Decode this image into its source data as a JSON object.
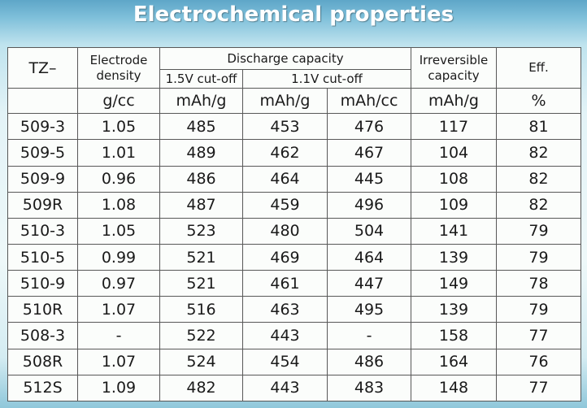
{
  "slide": {
    "title": "Electrochemical properties"
  },
  "table": {
    "header": {
      "tz": "TZ–",
      "electrode_density": [
        "Electrode",
        "density"
      ],
      "discharge_capacity": "Discharge capacity",
      "cutoff_15": "1.5V cut-off",
      "cutoff_11": "1.1V cut-off",
      "irreversible_capacity": [
        "Irreversible",
        "capacity"
      ],
      "eff": "Eff."
    },
    "units": [
      "g/cc",
      "mAh/g",
      "mAh/g",
      "mAh/cc",
      "mAh/g",
      "%"
    ],
    "rows": [
      [
        "509-3",
        "1.05",
        "485",
        "453",
        "476",
        "117",
        "81"
      ],
      [
        "509-5",
        "1.01",
        "489",
        "462",
        "467",
        "104",
        "82"
      ],
      [
        "509-9",
        "0.96",
        "486",
        "464",
        "445",
        "108",
        "82"
      ],
      [
        "509R",
        "1.08",
        "487",
        "459",
        "496",
        "109",
        "82"
      ],
      [
        "510-3",
        "1.05",
        "523",
        "480",
        "504",
        "141",
        "79"
      ],
      [
        "510-5",
        "0.99",
        "521",
        "469",
        "464",
        "139",
        "79"
      ],
      [
        "510-9",
        "0.97",
        "521",
        "461",
        "447",
        "149",
        "78"
      ],
      [
        "510R",
        "1.07",
        "516",
        "463",
        "495",
        "139",
        "79"
      ],
      [
        "508-3",
        "-",
        "522",
        "443",
        "-",
        "158",
        "77"
      ],
      [
        "508R",
        "1.07",
        "524",
        "454",
        "486",
        "164",
        "76"
      ],
      [
        "512S",
        "1.09",
        "482",
        "443",
        "483",
        "148",
        "77"
      ]
    ]
  }
}
